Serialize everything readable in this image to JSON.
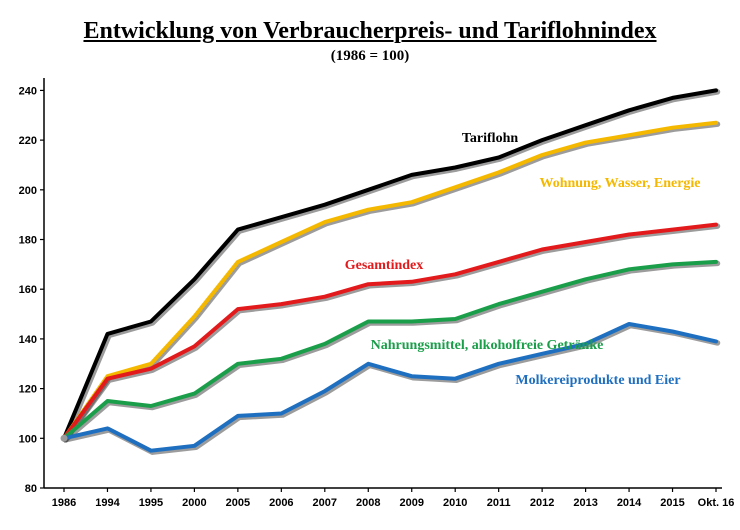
{
  "chart_data": {
    "type": "line",
    "title": "Entwicklung von Verbraucherpreis- und Tariflohnindex",
    "subtitle": "(1986 = 100)",
    "xlabel": "",
    "ylabel": "",
    "categories": [
      "1986",
      "1994",
      "1995",
      "2000",
      "2005",
      "2006",
      "2007",
      "2008",
      "2009",
      "2010",
      "2011",
      "2012",
      "2013",
      "2014",
      "2015",
      "Okt. 16"
    ],
    "ylim": [
      80,
      245
    ],
    "yticks": [
      80,
      100,
      120,
      140,
      160,
      180,
      200,
      220,
      240
    ],
    "grid": false,
    "legend": "inline labels",
    "series": [
      {
        "name": "Tariflohn",
        "color": "#000000",
        "values": [
          100,
          142,
          147,
          164,
          184,
          189,
          194,
          200,
          206,
          209,
          213,
          220,
          226,
          232,
          237,
          240
        ]
      },
      {
        "name": "Wohnung, Wasser, Energie",
        "color": "#f5b800",
        "values": [
          100,
          125,
          130,
          149,
          171,
          179,
          187,
          192,
          195,
          201,
          207,
          214,
          219,
          222,
          225,
          227
        ]
      },
      {
        "name": "Gesamtindex",
        "color": "#e31a1c",
        "values": [
          100,
          124,
          128,
          137,
          152,
          154,
          157,
          162,
          163,
          166,
          171,
          176,
          179,
          182,
          184,
          186
        ]
      },
      {
        "name": "Nahrungsmittel, alkoholfreie Getränke",
        "color": "#1a9e4a",
        "values": [
          100,
          115,
          113,
          118,
          130,
          132,
          138,
          147,
          147,
          148,
          154,
          159,
          164,
          168,
          170,
          171
        ]
      },
      {
        "name": "Molkereiprodukte und Eier",
        "color": "#1f6fc0",
        "values": [
          100,
          104,
          95,
          97,
          109,
          110,
          119,
          130,
          125,
          124,
          130,
          134,
          138,
          146,
          143,
          139
        ]
      }
    ]
  }
}
